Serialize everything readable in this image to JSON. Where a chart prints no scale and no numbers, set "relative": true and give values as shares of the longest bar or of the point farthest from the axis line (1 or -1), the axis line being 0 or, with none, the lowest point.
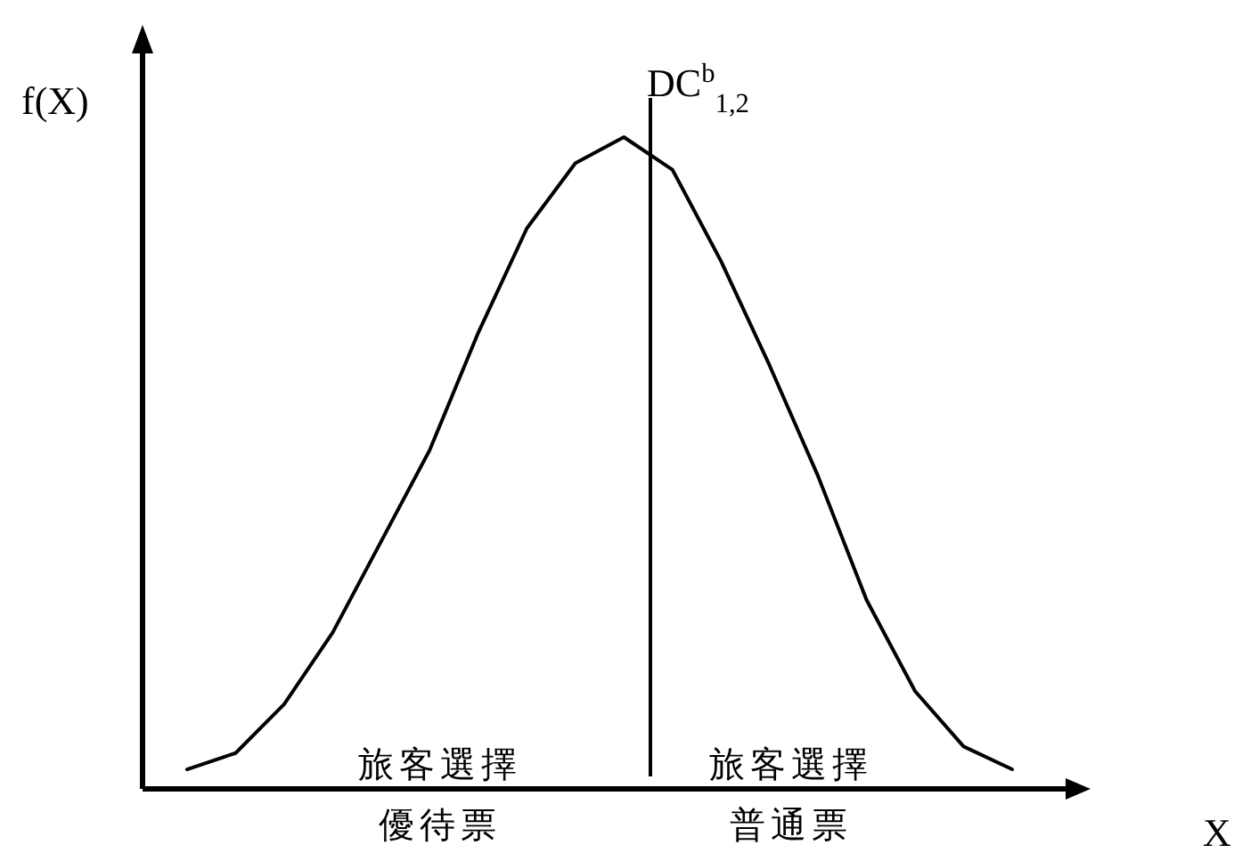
{
  "chart_data": {
    "type": "line",
    "relative": true,
    "xlabel": "X",
    "ylabel": "f(X)",
    "categories": [
      null,
      null,
      null,
      null,
      null,
      null,
      null,
      null,
      null,
      null,
      null,
      null,
      null,
      null,
      null,
      null,
      null,
      null
    ],
    "series": [
      {
        "color": "#000000",
        "values": [
          0.03,
          0.055,
          0.13,
          0.24,
          0.38,
          0.52,
          0.7,
          0.86,
          0.96,
          1.0,
          0.95,
          0.81,
          0.65,
          0.48,
          0.29,
          0.15,
          0.065,
          0.03
        ]
      }
    ],
    "annotations": [
      "DC$^{b}$$_{1,2}$",
      "旅客選擇優待票",
      "旅客選擇普通票"
    ],
    "marker": "none",
    "line_style": "solid"
  }
}
